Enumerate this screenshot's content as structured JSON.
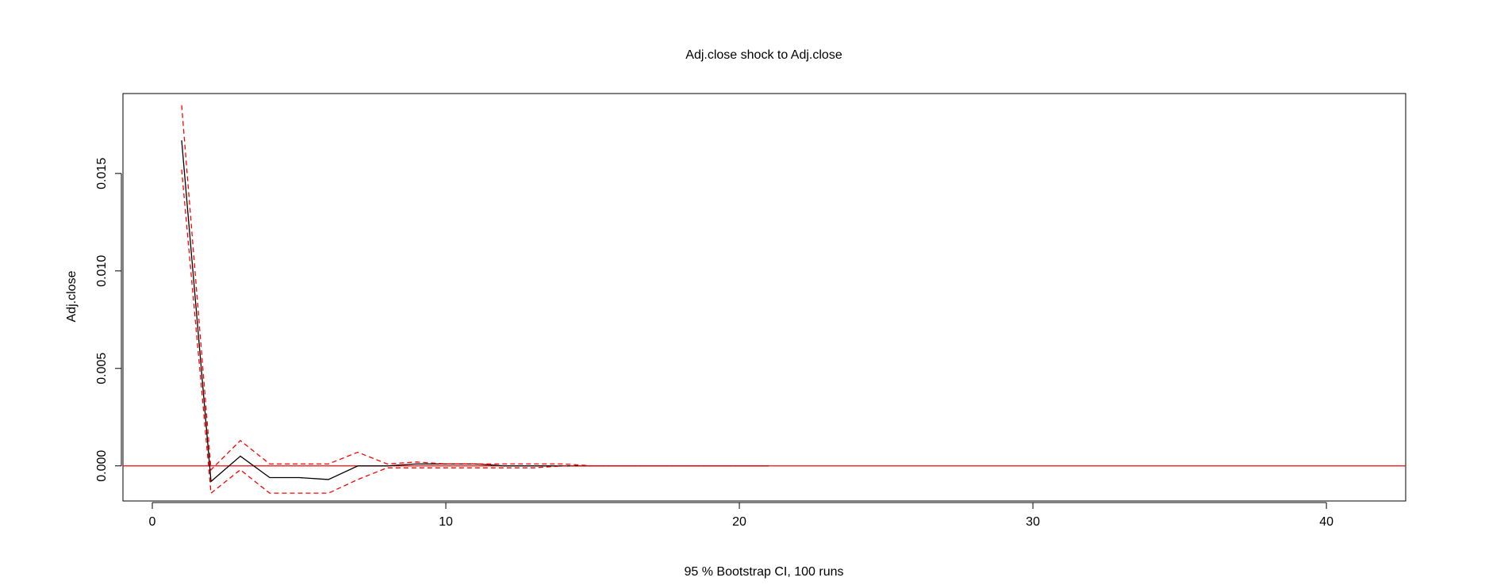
{
  "chart_data": {
    "type": "line",
    "title": "Adj.close shock to Adj.close",
    "xlabel": "95 % Bootstrap CI,  100 runs",
    "ylabel": "Adj.close",
    "xlim": [
      -1.0,
      42.7
    ],
    "ylim": [
      -0.0018,
      0.0191
    ],
    "x_ticks": [
      0,
      10,
      20,
      30,
      40
    ],
    "y_ticks": [
      0.0,
      0.005,
      0.01,
      0.015
    ],
    "x_tick_labels": [
      "0",
      "10",
      "20",
      "30",
      "40"
    ],
    "y_tick_labels": [
      "0.000",
      "0.005",
      "0.010",
      "0.015"
    ],
    "grid": false,
    "legend": "none",
    "reference_line": {
      "y": 0,
      "color": "#ff0000"
    },
    "series": [
      {
        "role": "irf",
        "color": "#000000",
        "dash": "solid",
        "x": [
          1,
          2,
          3,
          4,
          5,
          6,
          7,
          8,
          9,
          10,
          11,
          12,
          13,
          14,
          15,
          16,
          17,
          18,
          19,
          20,
          21
        ],
        "y": [
          0.0167,
          -0.0008,
          0.0005,
          -0.0006,
          -0.0006,
          -0.0007,
          0.0,
          0.0,
          0.0001,
          0.0001,
          0.0001,
          0.0,
          0.0,
          0.0,
          0.0,
          0.0,
          0.0,
          0.0,
          0.0,
          0.0,
          0.0
        ]
      },
      {
        "role": "upper",
        "color": "#ff0000",
        "dash": "dashed",
        "x": [
          1,
          2,
          3,
          4,
          5,
          6,
          7,
          8,
          9,
          10,
          11,
          12,
          13,
          14,
          15,
          16,
          17,
          18,
          19,
          20,
          21
        ],
        "y": [
          0.0185,
          -0.0002,
          0.0013,
          0.0001,
          0.0001,
          0.0001,
          0.0007,
          0.0001,
          0.0002,
          0.0001,
          0.0001,
          0.0001,
          0.0001,
          0.0001,
          0.0,
          0.0,
          0.0,
          0.0,
          0.0,
          0.0,
          0.0
        ]
      },
      {
        "role": "lower",
        "color": "#ff0000",
        "dash": "dashed",
        "x": [
          1,
          2,
          3,
          4,
          5,
          6,
          7,
          8,
          9,
          10,
          11,
          12,
          13,
          14,
          15,
          16,
          17,
          18,
          19,
          20,
          21
        ],
        "y": [
          0.0152,
          -0.0014,
          -0.0002,
          -0.0014,
          -0.0014,
          -0.0014,
          -0.0007,
          -0.0001,
          -0.0001,
          -0.0001,
          -0.0001,
          -0.0001,
          -0.0001,
          0.0,
          0.0,
          0.0,
          0.0,
          0.0,
          0.0,
          0.0,
          0.0
        ]
      }
    ]
  }
}
